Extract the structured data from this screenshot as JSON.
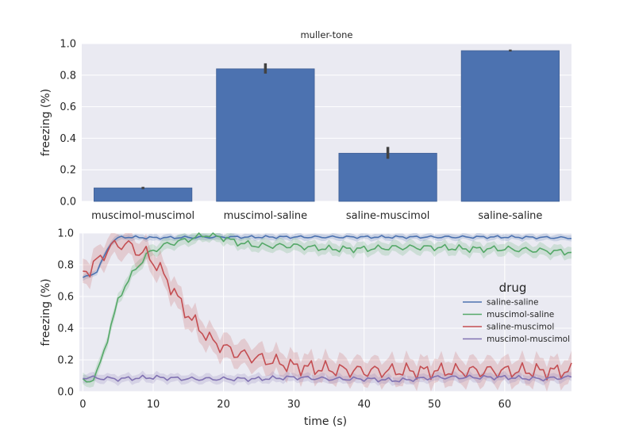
{
  "chart_data": [
    {
      "type": "bar",
      "title": "muller-tone",
      "xlabel": "",
      "ylabel": "freezing (%)",
      "ylim": [
        0,
        1.0
      ],
      "yticks": [
        "0.0",
        "0.2",
        "0.4",
        "0.6",
        "0.8",
        "1.0"
      ],
      "grid": true,
      "categories": [
        "muscimol-muscimol",
        "muscimol-saline",
        "saline-muscimol",
        "saline-saline"
      ],
      "values": [
        0.085,
        0.84,
        0.305,
        0.955
      ],
      "error_low": [
        0.078,
        0.81,
        0.27,
        0.95
      ],
      "error_high": [
        0.092,
        0.875,
        0.345,
        0.962
      ],
      "color": "#4c72b0"
    },
    {
      "type": "line",
      "xlabel": "time (s)",
      "ylabel": "freezing (%)",
      "xlim": [
        -0.5,
        69.5
      ],
      "ylim": [
        0,
        1.0
      ],
      "xticks": [
        "0",
        "10",
        "20",
        "30",
        "40",
        "50",
        "60"
      ],
      "yticks": [
        "0.0",
        "0.2",
        "0.4",
        "0.6",
        "0.8",
        "1.0"
      ],
      "grid": true,
      "legend": {
        "title": "drug",
        "placement": "center-right"
      },
      "series": [
        {
          "name": "saline-saline",
          "color": "#4c72b0",
          "keypoints": [
            [
              0,
              0.72
            ],
            [
              1,
              0.73
            ],
            [
              2,
              0.76
            ],
            [
              3,
              0.85
            ],
            [
              4,
              0.94
            ],
            [
              5,
              0.97
            ],
            [
              6,
              0.975
            ],
            [
              10,
              0.97
            ],
            [
              20,
              0.975
            ],
            [
              30,
              0.975
            ],
            [
              40,
              0.975
            ],
            [
              50,
              0.975
            ],
            [
              60,
              0.975
            ],
            [
              69,
              0.97
            ]
          ],
          "band": 0.012
        },
        {
          "name": "muscimol-saline",
          "color": "#55a868",
          "keypoints": [
            [
              0,
              0.06
            ],
            [
              1,
              0.065
            ],
            [
              2,
              0.12
            ],
            [
              3,
              0.25
            ],
            [
              4,
              0.42
            ],
            [
              5,
              0.57
            ],
            [
              6,
              0.67
            ],
            [
              7,
              0.74
            ],
            [
              8,
              0.8
            ],
            [
              9,
              0.86
            ],
            [
              10,
              0.89
            ],
            [
              12,
              0.93
            ],
            [
              15,
              0.96
            ],
            [
              17,
              0.985
            ],
            [
              18,
              0.99
            ],
            [
              20,
              0.97
            ],
            [
              22,
              0.94
            ],
            [
              25,
              0.92
            ],
            [
              30,
              0.92
            ],
            [
              35,
              0.9
            ],
            [
              40,
              0.9
            ],
            [
              45,
              0.91
            ],
            [
              50,
              0.91
            ],
            [
              55,
              0.9
            ],
            [
              60,
              0.9
            ],
            [
              65,
              0.89
            ],
            [
              69,
              0.88
            ]
          ],
          "band": 0.03
        },
        {
          "name": "saline-muscimol",
          "color": "#c44e52",
          "keypoints": [
            [
              0,
              0.76
            ],
            [
              1,
              0.77
            ],
            [
              2,
              0.82
            ],
            [
              3,
              0.87
            ],
            [
              4,
              0.91
            ],
            [
              5,
              0.93
            ],
            [
              6,
              0.93
            ],
            [
              7,
              0.91
            ],
            [
              8,
              0.88
            ],
            [
              9,
              0.87
            ],
            [
              10,
              0.82
            ],
            [
              11,
              0.77
            ],
            [
              12,
              0.7
            ],
            [
              13,
              0.63
            ],
            [
              14,
              0.55
            ],
            [
              15,
              0.48
            ],
            [
              16,
              0.43
            ],
            [
              17,
              0.38
            ],
            [
              18,
              0.33
            ],
            [
              20,
              0.28
            ],
            [
              22,
              0.24
            ],
            [
              25,
              0.21
            ],
            [
              28,
              0.18
            ],
            [
              30,
              0.16
            ],
            [
              35,
              0.14
            ],
            [
              40,
              0.13
            ],
            [
              45,
              0.13
            ],
            [
              50,
              0.13
            ],
            [
              55,
              0.13
            ],
            [
              60,
              0.13
            ],
            [
              65,
              0.13
            ],
            [
              69,
              0.13
            ]
          ],
          "band": 0.07
        },
        {
          "name": "muscimol-muscimol",
          "color": "#8172b2",
          "keypoints": [
            [
              0,
              0.09
            ],
            [
              5,
              0.08
            ],
            [
              10,
              0.09
            ],
            [
              15,
              0.08
            ],
            [
              20,
              0.08
            ],
            [
              25,
              0.08
            ],
            [
              30,
              0.09
            ],
            [
              35,
              0.08
            ],
            [
              40,
              0.08
            ],
            [
              45,
              0.07
            ],
            [
              50,
              0.09
            ],
            [
              55,
              0.09
            ],
            [
              60,
              0.09
            ],
            [
              65,
              0.08
            ],
            [
              69,
              0.09
            ]
          ],
          "band": 0.02
        }
      ]
    }
  ]
}
